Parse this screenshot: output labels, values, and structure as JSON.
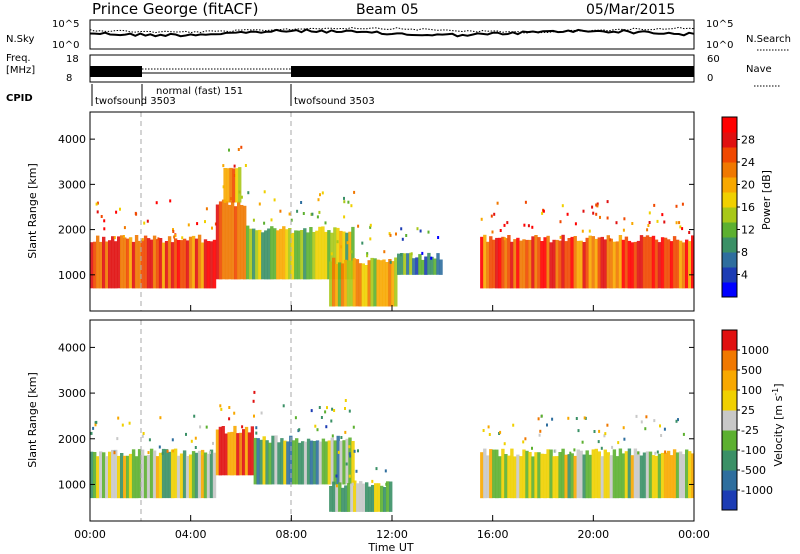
{
  "header": {
    "title": "Prince George (fitACF)",
    "beam": "Beam 05",
    "date": "05/Mar/2015"
  },
  "noise_panel": {
    "left_label": "N.Sky",
    "left_ticks": [
      "10^5",
      "10^0"
    ],
    "right_label": "N.Search",
    "right_ticks": [
      "10^5",
      "10^0"
    ]
  },
  "freq_panel": {
    "left_label_1": "Freq.",
    "left_label_2": "[MHz]",
    "left_ticks": [
      "18",
      "8"
    ],
    "right_label": "Nave",
    "right_ticks": [
      "60",
      "0"
    ]
  },
  "cpid": {
    "label": "CPID",
    "segments": [
      {
        "start": 0.0,
        "end": 2.0,
        "text": "twofsound 3503"
      },
      {
        "start": 2.0,
        "end": 8.0,
        "text": "normal (fast) 151"
      },
      {
        "start": 8.0,
        "end": 24.0,
        "text": "twofsound 3503"
      }
    ]
  },
  "chart_data": [
    {
      "type": "heatmap",
      "name": "power",
      "ylabel": "Slant Range [km]",
      "yticks": [
        "4000",
        "3000",
        "2000",
        "1000"
      ],
      "ytick_values": [
        4000,
        3000,
        2000,
        1000
      ],
      "ylim": [
        200,
        4600
      ],
      "xlim": [
        0,
        24
      ],
      "colorbar_label": "Power [dB]",
      "colorbar_ticks": [
        "28",
        "24",
        "20",
        "16",
        "12",
        "8",
        "4"
      ],
      "colorbar_colors": [
        "#0000ff",
        "#1c3cb4",
        "#2e6e9e",
        "#3a9066",
        "#5cb030",
        "#a8c818",
        "#f0d000",
        "#f8a800",
        "#f07800",
        "#f04800",
        "#e01010",
        "#ff0000"
      ],
      "regions": [
        {
          "t0": 0.0,
          "t1": 5.0,
          "r0": 700,
          "r1": 1800,
          "level": 9
        },
        {
          "t0": 5.0,
          "t1": 6.2,
          "r0": 900,
          "r1": 2600,
          "level": 8
        },
        {
          "t0": 5.3,
          "t1": 6.0,
          "r0": 2600,
          "r1": 3400,
          "level": 7
        },
        {
          "t0": 6.2,
          "t1": 10.5,
          "r0": 900,
          "r1": 2000,
          "level": 5
        },
        {
          "t0": 9.5,
          "t1": 12.2,
          "r0": 300,
          "r1": 1300,
          "level": 6
        },
        {
          "t0": 12.2,
          "t1": 14.0,
          "r0": 1000,
          "r1": 1400,
          "level": 3
        },
        {
          "t0": 15.5,
          "t1": 24.0,
          "r0": 700,
          "r1": 1800,
          "level": 9
        }
      ]
    },
    {
      "type": "heatmap",
      "name": "velocity",
      "ylabel": "Slant Range [km]",
      "yticks": [
        "4000",
        "3000",
        "2000",
        "1000"
      ],
      "ytick_values": [
        4000,
        3000,
        2000,
        1000
      ],
      "ylim": [
        200,
        4600
      ],
      "xlim": [
        0,
        24
      ],
      "xlabel": "Time UT",
      "xticks": [
        "00:00",
        "04:00",
        "08:00",
        "12:00",
        "16:00",
        "20:00",
        "00:00"
      ],
      "xtick_values": [
        0,
        4,
        8,
        12,
        16,
        20,
        24
      ],
      "colorbar_label": "Velocity [m s-1]",
      "colorbar_ticks": [
        "1000",
        "500",
        "100",
        "25",
        "-25",
        "-100",
        "-500",
        "-1000"
      ],
      "colorbar_colors": [
        "#1c3cb4",
        "#2e6e9e",
        "#3a9066",
        "#5cb030",
        "#c8c8c8",
        "#f0d000",
        "#f8a800",
        "#f07800",
        "#e01010"
      ],
      "regions": [
        {
          "t0": 0.0,
          "t1": 5.0,
          "r0": 700,
          "r1": 1700,
          "level": 4
        },
        {
          "t0": 5.0,
          "t1": 6.5,
          "r0": 1200,
          "r1": 2200,
          "level": 7
        },
        {
          "t0": 6.5,
          "t1": 10.5,
          "r0": 1000,
          "r1": 2000,
          "level": 3
        },
        {
          "t0": 9.5,
          "t1": 12.0,
          "r0": 400,
          "r1": 1000,
          "level": 3
        },
        {
          "t0": 15.5,
          "t1": 24.0,
          "r0": 700,
          "r1": 1700,
          "level": 4
        }
      ]
    }
  ]
}
